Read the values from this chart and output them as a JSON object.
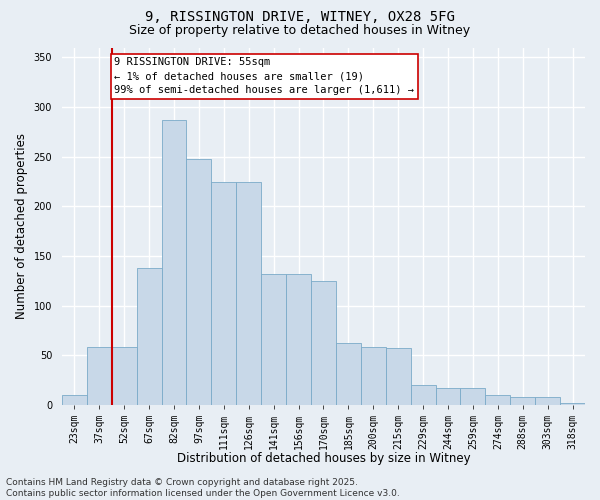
{
  "title_line1": "9, RISSINGTON DRIVE, WITNEY, OX28 5FG",
  "title_line2": "Size of property relative to detached houses in Witney",
  "xlabel": "Distribution of detached houses by size in Witney",
  "ylabel": "Number of detached properties",
  "categories": [
    "23sqm",
    "37sqm",
    "52sqm",
    "67sqm",
    "82sqm",
    "97sqm",
    "111sqm",
    "126sqm",
    "141sqm",
    "156sqm",
    "170sqm",
    "185sqm",
    "200sqm",
    "215sqm",
    "229sqm",
    "244sqm",
    "259sqm",
    "274sqm",
    "288sqm",
    "303sqm",
    "318sqm"
  ],
  "values": [
    10,
    58,
    58,
    138,
    287,
    248,
    225,
    225,
    132,
    132,
    125,
    62,
    58,
    57,
    20,
    17,
    17,
    10,
    8,
    8,
    2
  ],
  "bar_color": "#c8d8e8",
  "bar_edge_color": "#7aaac8",
  "vline_color": "#cc0000",
  "vline_x_index": 2.0,
  "annotation_text": "9 RISSINGTON DRIVE: 55sqm\n← 1% of detached houses are smaller (19)\n99% of semi-detached houses are larger (1,611) →",
  "annotation_box_color": "#ffffff",
  "annotation_box_edge": "#cc0000",
  "ylim": [
    0,
    360
  ],
  "yticks": [
    0,
    50,
    100,
    150,
    200,
    250,
    300,
    350
  ],
  "background_color": "#e8eef4",
  "grid_color": "#ffffff",
  "footer_line1": "Contains HM Land Registry data © Crown copyright and database right 2025.",
  "footer_line2": "Contains public sector information licensed under the Open Government Licence v3.0.",
  "title_fontsize": 10,
  "subtitle_fontsize": 9,
  "axis_label_fontsize": 8.5,
  "tick_fontsize": 7,
  "annotation_fontsize": 7.5,
  "footer_fontsize": 6.5
}
